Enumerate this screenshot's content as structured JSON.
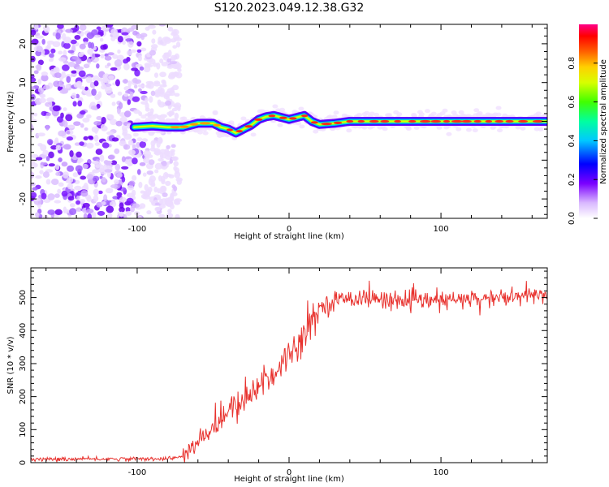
{
  "title": "S120.2023.049.12.38.G32",
  "chart_data": [
    {
      "type": "heatmap",
      "xlabel": "Height of straight line (km)",
      "ylabel": "Frequency (Hz)",
      "xlim": [
        -170,
        170
      ],
      "ylim": [
        -25,
        25
      ],
      "xticks": [
        -100,
        0,
        100
      ],
      "yticks": [
        -20,
        -10,
        0,
        10,
        20
      ],
      "grid": false,
      "colorbar": {
        "label": "Normalized spectral amplitude",
        "range": [
          0,
          1
        ],
        "ticks": [
          "0.0",
          "0.2",
          "0.4",
          "0.6",
          "0.8"
        ],
        "colormap": "rainbow-white-to-pink"
      },
      "ridge": {
        "x": [
          -102,
          -90,
          -80,
          -70,
          -60,
          -50,
          -45,
          -40,
          -35,
          -30,
          -25,
          -20,
          -15,
          -10,
          -5,
          0,
          5,
          10,
          15,
          20,
          30,
          40,
          60,
          80,
          100,
          120,
          140,
          160,
          170
        ],
        "frequency": [
          -1.5,
          -1.2,
          -1.5,
          -1.5,
          -0.5,
          -0.5,
          -1.5,
          -2,
          -3,
          -2,
          -1,
          0.5,
          1.2,
          1.5,
          1,
          0.5,
          1,
          1.5,
          0,
          -0.8,
          -0.5,
          0,
          0,
          0,
          0,
          0,
          0,
          0,
          0
        ]
      },
      "noise_region_x": [
        -170,
        -78
      ]
    },
    {
      "type": "line",
      "xlabel": "Height of straight line (km)",
      "ylabel": "SNR (10 * v/v)",
      "xlim": [
        -170,
        170
      ],
      "ylim": [
        0,
        590
      ],
      "xticks": [
        -100,
        0,
        100
      ],
      "yticks": [
        0,
        100,
        200,
        300,
        400,
        500
      ],
      "grid": false,
      "color": "#e8322e",
      "envelope": {
        "x": [
          -170,
          -80,
          -70,
          -60,
          -50,
          -40,
          -30,
          -20,
          -10,
          0,
          10,
          20,
          30,
          40,
          60,
          80,
          100,
          120,
          140,
          160,
          170
        ],
        "y": [
          10,
          12,
          18,
          60,
          110,
          150,
          190,
          230,
          270,
          330,
          390,
          470,
          490,
          500,
          495,
          490,
          490,
          495,
          500,
          505,
          510
        ]
      },
      "noise_std": 14
    }
  ]
}
